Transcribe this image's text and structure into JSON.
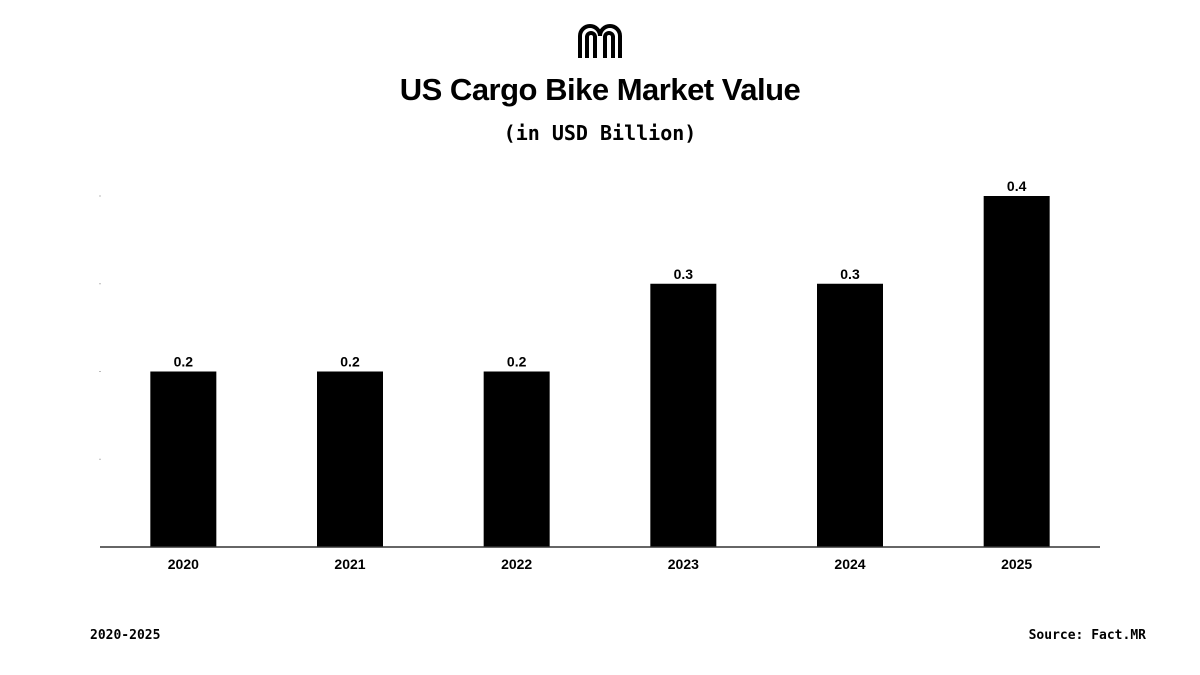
{
  "brand": {
    "logo_icon": "factmr-arch-logo-icon"
  },
  "chart_data": {
    "type": "bar",
    "title": "US Cargo Bike Market Value",
    "subtitle": "(in USD Billion)",
    "xlabel": "",
    "ylabel": "",
    "categories": [
      "2020",
      "2021",
      "2022",
      "2023",
      "2024",
      "2025"
    ],
    "values": [
      0.2,
      0.2,
      0.2,
      0.3,
      0.3,
      0.4
    ],
    "data_labels": [
      "0.2",
      "0.2",
      "0.2",
      "0.3",
      "0.3",
      "0.4"
    ],
    "ylim": [
      0,
      0.4
    ],
    "grid": false,
    "bar_color": "#000000"
  },
  "footer": {
    "period": "2020-2025",
    "source": "Source: Fact.MR"
  }
}
